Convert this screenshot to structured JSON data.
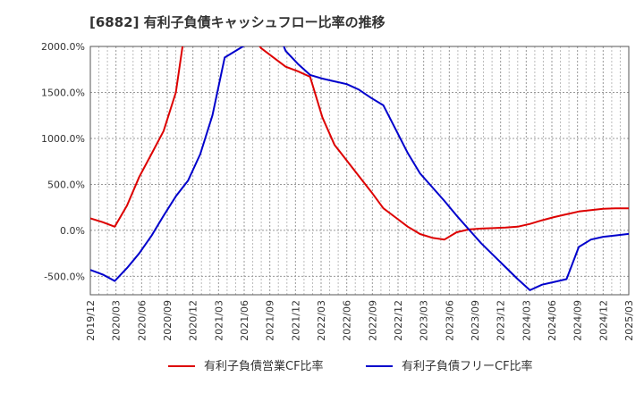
{
  "chart_data": {
    "type": "line",
    "title": "[6882]  有利子負債キャッシュフロー比率の推移",
    "xlabel": "",
    "ylabel": "",
    "ylim": [
      -700,
      2000
    ],
    "y_ticks": [
      "-500.0%",
      "0.0%",
      "500.0%",
      "1000.0%",
      "1500.0%",
      "2000.0%"
    ],
    "y_tick_values": [
      -500,
      0,
      500,
      1000,
      1500,
      2000
    ],
    "x_ticks": [
      "2019/12",
      "2020/03",
      "2020/06",
      "2020/09",
      "2020/12",
      "2021/03",
      "2021/06",
      "2021/09",
      "2021/12",
      "2022/03",
      "2022/06",
      "2022/09",
      "2022/12",
      "2023/03",
      "2023/06",
      "2023/09",
      "2023/12",
      "2024/03",
      "2024/06",
      "2024/09",
      "2024/12",
      "2025/03"
    ],
    "grid": true,
    "legend_position": "bottom",
    "series": [
      {
        "name": "有利子負債営業CF比率",
        "color": "#dd0000",
        "points": [
          [
            0,
            130
          ],
          [
            1,
            90
          ],
          [
            2,
            40
          ],
          [
            3,
            270
          ],
          [
            4,
            580
          ],
          [
            5,
            830
          ],
          [
            6,
            1080
          ],
          [
            7,
            1500
          ],
          [
            7.6,
            2050
          ]
        ],
        "segments2": [
          [
            13.6,
            2050
          ],
          [
            14,
            1980
          ],
          [
            15,
            1880
          ],
          [
            16,
            1780
          ],
          [
            17,
            1730
          ],
          [
            18,
            1670
          ],
          [
            19,
            1230
          ],
          [
            20,
            930
          ],
          [
            21,
            760
          ],
          [
            22,
            590
          ],
          [
            23,
            420
          ],
          [
            24,
            240
          ],
          [
            25,
            140
          ],
          [
            26,
            40
          ],
          [
            27,
            -40
          ],
          [
            28,
            -80
          ],
          [
            29,
            -100
          ],
          [
            30,
            -20
          ],
          [
            31,
            10
          ],
          [
            32,
            20
          ],
          [
            33,
            25
          ],
          [
            34,
            30
          ],
          [
            35,
            40
          ],
          [
            36,
            70
          ],
          [
            37,
            110
          ],
          [
            38,
            145
          ],
          [
            39,
            175
          ],
          [
            40,
            205
          ],
          [
            41,
            220
          ],
          [
            42,
            235
          ],
          [
            43,
            240
          ],
          [
            44,
            240
          ],
          [
            45,
            240
          ]
        ]
      },
      {
        "name": "有利子負債フリーCF比率",
        "color": "#0000cc",
        "points": [
          [
            0,
            -430
          ],
          [
            1,
            -480
          ],
          [
            2,
            -550
          ],
          [
            3,
            -410
          ],
          [
            4,
            -250
          ],
          [
            5,
            -60
          ],
          [
            6,
            160
          ],
          [
            7,
            370
          ],
          [
            8,
            540
          ],
          [
            9,
            830
          ],
          [
            10,
            1250
          ],
          [
            11,
            1880
          ],
          [
            12,
            1960
          ],
          [
            13,
            2040
          ],
          [
            14,
            2050
          ]
        ],
        "segments2": [
          [
            15.7,
            2050
          ],
          [
            16,
            1950
          ],
          [
            17,
            1810
          ],
          [
            18,
            1690
          ],
          [
            19,
            1650
          ],
          [
            20,
            1620
          ],
          [
            21,
            1590
          ],
          [
            22,
            1530
          ],
          [
            23,
            1440
          ],
          [
            24,
            1360
          ],
          [
            25,
            1100
          ],
          [
            26,
            840
          ],
          [
            27,
            620
          ],
          [
            28,
            470
          ],
          [
            29,
            320
          ],
          [
            30,
            160
          ],
          [
            31,
            10
          ],
          [
            32,
            -140
          ],
          [
            33,
            -270
          ],
          [
            34,
            -400
          ],
          [
            35,
            -530
          ],
          [
            36,
            -650
          ],
          [
            37,
            -590
          ],
          [
            38,
            -560
          ],
          [
            39,
            -530
          ],
          [
            40,
            -180
          ],
          [
            41,
            -100
          ],
          [
            42,
            -70
          ],
          [
            43,
            -55
          ],
          [
            44,
            -40
          ],
          [
            45,
            -30
          ]
        ]
      }
    ]
  }
}
